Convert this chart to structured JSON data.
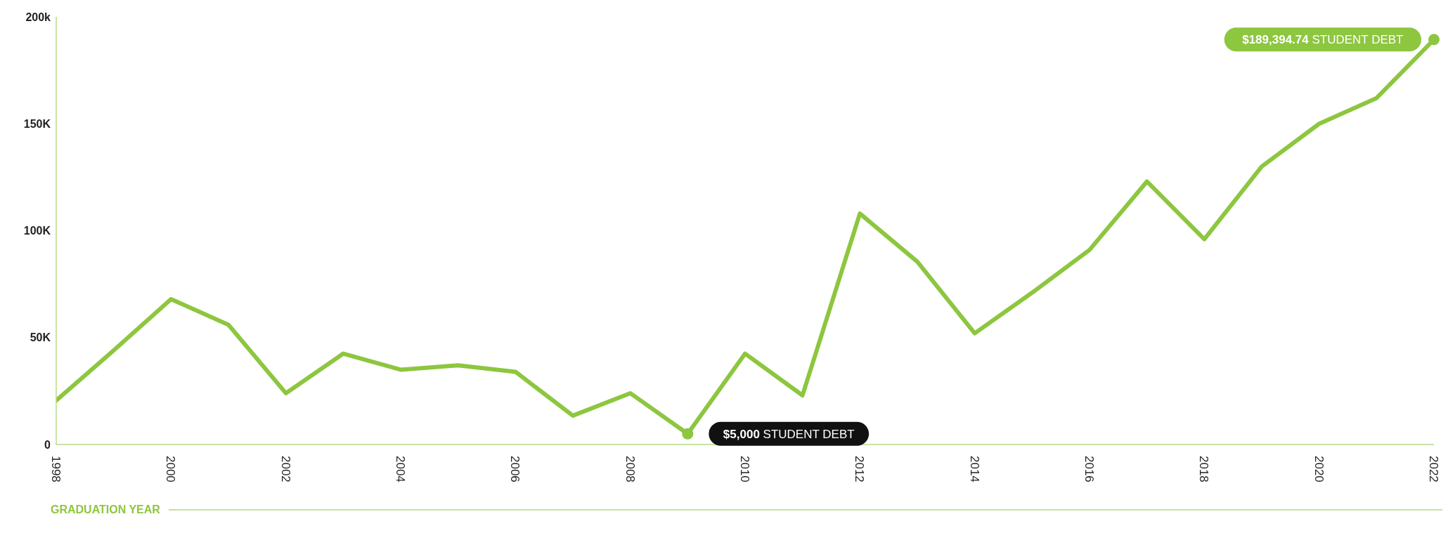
{
  "chart_data": {
    "type": "line",
    "xlabel": "GRADUATION YEAR",
    "x": [
      1998,
      1999,
      2000,
      2001,
      2002,
      2003,
      2004,
      2005,
      2006,
      2007,
      2008,
      2009,
      2010,
      2011,
      2012,
      2013,
      2014,
      2015,
      2016,
      2017,
      2018,
      2019,
      2020,
      2021,
      2022
    ],
    "series": [
      {
        "color": "#8dc63f",
        "values": [
          20600,
          44000,
          68000,
          56000,
          24000,
          42500,
          35000,
          37000,
          34000,
          13500,
          24000,
          5000,
          42500,
          23000,
          108000,
          85500,
          52000,
          71000,
          91000,
          123000,
          96000,
          130000,
          150000,
          162000,
          189394.74
        ]
      }
    ],
    "xlim": [
      1998,
      2022
    ],
    "xticks": [
      1998,
      2000,
      2002,
      2004,
      2006,
      2008,
      2010,
      2012,
      2014,
      2016,
      2018,
      2020,
      2022
    ],
    "ylim": [
      0,
      200000
    ],
    "yticks": [
      {
        "value": 0,
        "label": "0"
      },
      {
        "value": 50000,
        "label": "50K"
      },
      {
        "value": 100000,
        "label": "100K"
      },
      {
        "value": 150000,
        "label": "150K"
      },
      {
        "value": 200000,
        "label": "200k"
      }
    ],
    "grid": false,
    "legend": false,
    "annotations": [
      {
        "text": "$5,000 STUDENT DEBT",
        "x": 2009,
        "y": 5000
      },
      {
        "text": "$189,394.74 STUDENT DEBT",
        "x": 2022,
        "y": 189394.74
      }
    ]
  }
}
